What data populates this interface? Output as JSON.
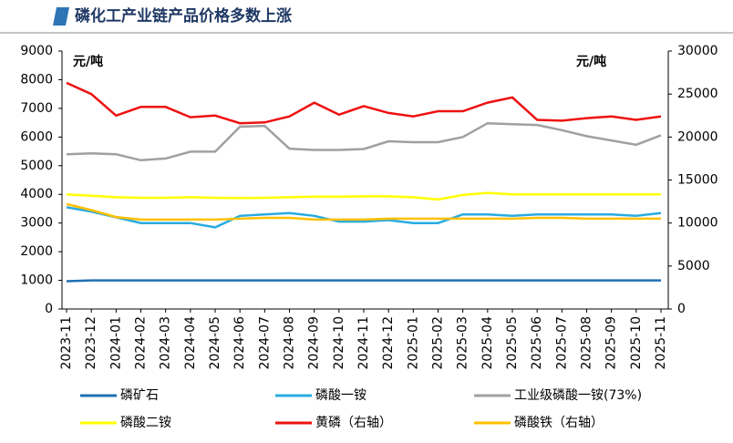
{
  "chart_data": {
    "type": "line",
    "title": "磷化工产业链产品价格多数上涨",
    "y_unit": "元/吨",
    "y2_unit": "元/吨",
    "categories": [
      "2023-11",
      "2023-12",
      "2024-01",
      "2024-02",
      "2024-03",
      "2024-04",
      "2024-05",
      "2024-06",
      "2024-07",
      "2024-08",
      "2024-09",
      "2024-10",
      "2024-11",
      "2024-12",
      "2025-01",
      "2025-02",
      "2025-03",
      "2025-04",
      "2025-05",
      "2025-06",
      "2025-07",
      "2025-08",
      "2025-09",
      "2025-10",
      "2025-11"
    ],
    "ylim": [
      0,
      9000
    ],
    "yticks": [
      0,
      1000,
      2000,
      3000,
      4000,
      5000,
      6000,
      7000,
      8000,
      9000
    ],
    "y2lim": [
      0,
      30000
    ],
    "y2ticks": [
      0,
      5000,
      10000,
      15000,
      20000,
      25000,
      30000
    ],
    "series": [
      {
        "name": "磷矿石",
        "color": "#1f6fb4",
        "values": [
          970,
          1000,
          1000,
          1000,
          1000,
          1000,
          1000,
          1000,
          1000,
          1000,
          1000,
          1000,
          1000,
          1000,
          1000,
          1000,
          1000,
          1000,
          1000,
          1000,
          1000,
          1000,
          1000,
          1000,
          1000
        ]
      },
      {
        "name": "磷酸一铵",
        "color": "#29abe2",
        "values": [
          3550,
          3400,
          3200,
          3000,
          3000,
          3000,
          2850,
          3250,
          3300,
          3350,
          3250,
          3050,
          3050,
          3100,
          3000,
          3000,
          3300,
          3300,
          3250,
          3300,
          3300,
          3300,
          3300,
          3250,
          3350
        ]
      },
      {
        "name": "工业级磷酸一铵(73%)",
        "color": "#a0a0a0",
        "axis": "y2",
        "values": [
          18000,
          18100,
          18000,
          17300,
          17500,
          18300,
          18300,
          21200,
          21300,
          18650,
          18500,
          18500,
          18600,
          19500,
          19400,
          19400,
          20000,
          21600,
          21500,
          21400,
          20800,
          20100,
          19600,
          19100,
          20200
        ]
      },
      {
        "name": "磷酸二铵",
        "color": "#ffff00",
        "values": [
          4000,
          3950,
          3900,
          3880,
          3880,
          3900,
          3880,
          3870,
          3880,
          3900,
          3920,
          3920,
          3930,
          3930,
          3900,
          3820,
          3980,
          4050,
          4000,
          4000,
          4000,
          4000,
          4000,
          4000,
          4000
        ]
      },
      {
        "name": "黄磷（右轴）",
        "color": "#ee1111",
        "axis": "y2",
        "values": [
          26300,
          25000,
          22500,
          23500,
          23500,
          22300,
          22500,
          21600,
          21700,
          22400,
          24000,
          22600,
          23600,
          22800,
          22400,
          23000,
          23000,
          24000,
          24600,
          22000,
          21900,
          22200,
          22400,
          22000,
          22400
        ]
      },
      {
        "name": "磷酸铁（右轴）",
        "color": "#ffc000",
        "axis": "y2",
        "values": [
          12200,
          11500,
          10700,
          10400,
          10400,
          10400,
          10400,
          10500,
          10600,
          10600,
          10400,
          10400,
          10400,
          10500,
          10500,
          10500,
          10500,
          10500,
          10500,
          10600,
          10600,
          10500,
          10500,
          10500,
          10500
        ]
      }
    ]
  }
}
